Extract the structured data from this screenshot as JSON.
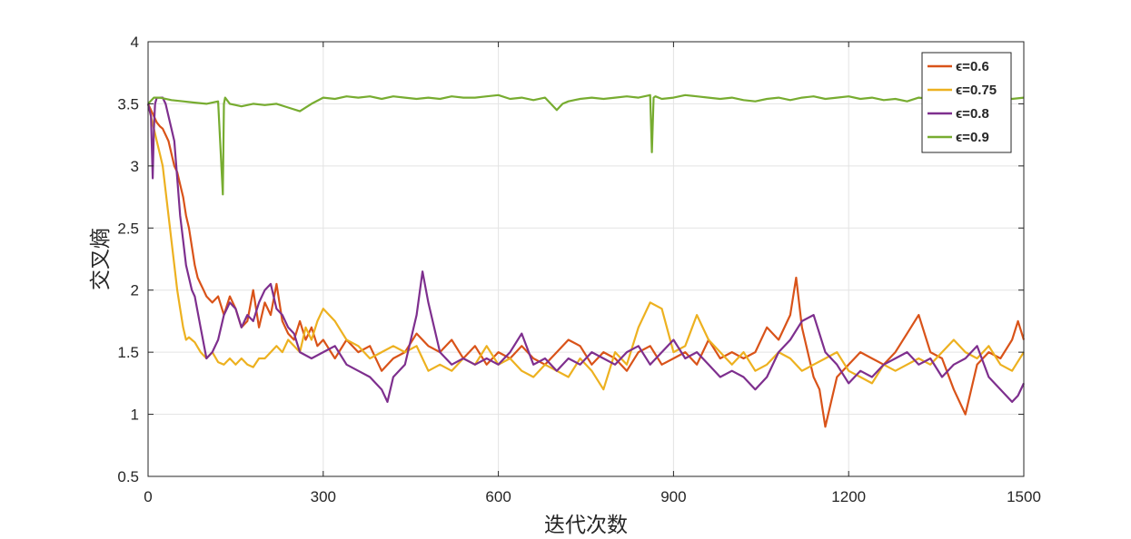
{
  "chart_data": {
    "type": "line",
    "title": "",
    "xlabel": "迭代次数",
    "ylabel": "交叉熵",
    "xlim": [
      0,
      1500
    ],
    "ylim": [
      0.5,
      4
    ],
    "xticks": [
      0,
      300,
      600,
      900,
      1200,
      1500
    ],
    "yticks": [
      0.5,
      1,
      1.5,
      2,
      2.5,
      3,
      3.5,
      4
    ],
    "grid": true,
    "legend_position": "top-right",
    "series": [
      {
        "name": "ϵ=0.6",
        "color": "#D95319",
        "x": [
          0,
          5,
          10,
          15,
          20,
          25,
          30,
          35,
          40,
          45,
          50,
          55,
          60,
          65,
          70,
          75,
          80,
          85,
          90,
          95,
          100,
          110,
          120,
          130,
          140,
          150,
          160,
          170,
          180,
          190,
          200,
          210,
          220,
          230,
          240,
          250,
          260,
          270,
          280,
          290,
          300,
          320,
          340,
          360,
          380,
          400,
          420,
          440,
          460,
          480,
          500,
          520,
          540,
          560,
          580,
          600,
          620,
          640,
          660,
          680,
          700,
          720,
          740,
          760,
          780,
          800,
          820,
          840,
          860,
          880,
          900,
          920,
          940,
          960,
          980,
          1000,
          1020,
          1040,
          1060,
          1080,
          1100,
          1110,
          1120,
          1130,
          1140,
          1150,
          1160,
          1170,
          1180,
          1200,
          1220,
          1240,
          1260,
          1280,
          1300,
          1320,
          1340,
          1360,
          1380,
          1400,
          1420,
          1440,
          1460,
          1480,
          1490,
          1500
        ],
        "y": [
          3.5,
          3.45,
          3.4,
          3.35,
          3.32,
          3.3,
          3.25,
          3.2,
          3.1,
          3.0,
          2.95,
          2.85,
          2.75,
          2.6,
          2.5,
          2.35,
          2.2,
          2.1,
          2.05,
          2.0,
          1.95,
          1.9,
          1.95,
          1.8,
          1.95,
          1.85,
          1.7,
          1.75,
          2.0,
          1.7,
          1.9,
          1.8,
          2.05,
          1.75,
          1.65,
          1.6,
          1.75,
          1.6,
          1.7,
          1.55,
          1.6,
          1.45,
          1.6,
          1.5,
          1.55,
          1.35,
          1.45,
          1.5,
          1.65,
          1.55,
          1.5,
          1.6,
          1.45,
          1.55,
          1.4,
          1.5,
          1.45,
          1.55,
          1.45,
          1.4,
          1.5,
          1.6,
          1.55,
          1.4,
          1.5,
          1.45,
          1.35,
          1.5,
          1.55,
          1.4,
          1.45,
          1.5,
          1.4,
          1.6,
          1.45,
          1.5,
          1.45,
          1.5,
          1.7,
          1.6,
          1.8,
          2.1,
          1.7,
          1.5,
          1.3,
          1.2,
          0.9,
          1.1,
          1.3,
          1.4,
          1.5,
          1.45,
          1.4,
          1.5,
          1.65,
          1.8,
          1.5,
          1.45,
          1.2,
          1.0,
          1.4,
          1.5,
          1.45,
          1.6,
          1.75,
          1.6
        ]
      },
      {
        "name": "ϵ=0.75",
        "color": "#EDB120",
        "x": [
          0,
          5,
          10,
          15,
          20,
          25,
          30,
          35,
          40,
          45,
          50,
          55,
          60,
          65,
          70,
          75,
          80,
          90,
          100,
          110,
          120,
          130,
          140,
          150,
          160,
          170,
          180,
          190,
          200,
          210,
          220,
          230,
          240,
          250,
          260,
          270,
          280,
          290,
          300,
          320,
          340,
          360,
          380,
          400,
          420,
          440,
          460,
          480,
          500,
          520,
          540,
          560,
          580,
          600,
          620,
          640,
          660,
          680,
          700,
          720,
          740,
          760,
          780,
          800,
          820,
          840,
          860,
          880,
          900,
          920,
          940,
          960,
          980,
          1000,
          1020,
          1040,
          1060,
          1080,
          1100,
          1120,
          1140,
          1160,
          1180,
          1200,
          1220,
          1240,
          1260,
          1280,
          1300,
          1320,
          1340,
          1360,
          1380,
          1400,
          1420,
          1440,
          1460,
          1480,
          1500
        ],
        "y": [
          3.5,
          3.4,
          3.3,
          3.2,
          3.1,
          3.0,
          2.8,
          2.6,
          2.4,
          2.2,
          2.0,
          1.85,
          1.7,
          1.6,
          1.62,
          1.6,
          1.58,
          1.5,
          1.45,
          1.5,
          1.42,
          1.4,
          1.45,
          1.4,
          1.45,
          1.4,
          1.38,
          1.45,
          1.45,
          1.5,
          1.55,
          1.5,
          1.6,
          1.55,
          1.5,
          1.7,
          1.6,
          1.75,
          1.85,
          1.75,
          1.6,
          1.55,
          1.45,
          1.5,
          1.55,
          1.5,
          1.55,
          1.35,
          1.4,
          1.35,
          1.45,
          1.4,
          1.55,
          1.4,
          1.45,
          1.35,
          1.3,
          1.4,
          1.35,
          1.3,
          1.45,
          1.35,
          1.2,
          1.5,
          1.4,
          1.7,
          1.9,
          1.85,
          1.5,
          1.55,
          1.8,
          1.6,
          1.5,
          1.4,
          1.5,
          1.35,
          1.4,
          1.5,
          1.45,
          1.35,
          1.4,
          1.45,
          1.5,
          1.35,
          1.3,
          1.25,
          1.4,
          1.35,
          1.4,
          1.45,
          1.4,
          1.5,
          1.6,
          1.5,
          1.45,
          1.55,
          1.4,
          1.35,
          1.5
        ]
      },
      {
        "name": "ϵ=0.8",
        "color": "#7E2F8E",
        "x": [
          0,
          5,
          8,
          10,
          12,
          15,
          20,
          25,
          30,
          35,
          40,
          45,
          50,
          55,
          60,
          65,
          70,
          75,
          80,
          90,
          100,
          110,
          120,
          130,
          140,
          150,
          160,
          170,
          180,
          190,
          200,
          210,
          220,
          230,
          240,
          250,
          260,
          280,
          300,
          320,
          340,
          360,
          380,
          400,
          410,
          420,
          440,
          460,
          470,
          480,
          500,
          520,
          540,
          560,
          580,
          600,
          620,
          640,
          660,
          680,
          700,
          720,
          740,
          760,
          780,
          800,
          820,
          840,
          860,
          880,
          900,
          920,
          940,
          960,
          980,
          1000,
          1020,
          1040,
          1060,
          1080,
          1100,
          1120,
          1140,
          1160,
          1180,
          1200,
          1220,
          1240,
          1260,
          1280,
          1300,
          1320,
          1340,
          1360,
          1380,
          1400,
          1420,
          1440,
          1460,
          1480,
          1490,
          1500
        ],
        "y": [
          3.5,
          3.4,
          2.9,
          3.3,
          3.5,
          3.55,
          3.55,
          3.55,
          3.5,
          3.4,
          3.3,
          3.2,
          2.9,
          2.6,
          2.4,
          2.2,
          2.1,
          2.0,
          1.95,
          1.7,
          1.45,
          1.5,
          1.6,
          1.8,
          1.9,
          1.85,
          1.7,
          1.8,
          1.75,
          1.9,
          2.0,
          2.05,
          1.85,
          1.8,
          1.7,
          1.65,
          1.5,
          1.45,
          1.5,
          1.55,
          1.4,
          1.35,
          1.3,
          1.2,
          1.1,
          1.3,
          1.4,
          1.8,
          2.15,
          1.9,
          1.5,
          1.4,
          1.45,
          1.4,
          1.45,
          1.4,
          1.5,
          1.65,
          1.4,
          1.45,
          1.35,
          1.45,
          1.4,
          1.5,
          1.45,
          1.4,
          1.5,
          1.55,
          1.4,
          1.5,
          1.6,
          1.45,
          1.5,
          1.4,
          1.3,
          1.35,
          1.3,
          1.2,
          1.3,
          1.5,
          1.6,
          1.75,
          1.8,
          1.5,
          1.4,
          1.25,
          1.35,
          1.3,
          1.4,
          1.45,
          1.5,
          1.4,
          1.45,
          1.3,
          1.4,
          1.45,
          1.55,
          1.3,
          1.2,
          1.1,
          1.15,
          1.25
        ]
      },
      {
        "name": "ϵ=0.9",
        "color": "#77AC30",
        "x": [
          0,
          10,
          20,
          40,
          60,
          80,
          100,
          120,
          128,
          130,
          132,
          140,
          160,
          180,
          200,
          220,
          240,
          260,
          280,
          300,
          320,
          340,
          360,
          380,
          400,
          420,
          440,
          460,
          480,
          500,
          520,
          540,
          560,
          580,
          600,
          620,
          640,
          660,
          680,
          700,
          710,
          720,
          740,
          760,
          780,
          800,
          820,
          840,
          860,
          863,
          866,
          869,
          880,
          900,
          920,
          940,
          960,
          980,
          1000,
          1020,
          1040,
          1060,
          1080,
          1100,
          1120,
          1140,
          1160,
          1180,
          1200,
          1220,
          1240,
          1260,
          1280,
          1300,
          1320,
          1340,
          1360,
          1380,
          1400,
          1420,
          1440,
          1460,
          1480,
          1500
        ],
        "y": [
          3.5,
          3.55,
          3.55,
          3.53,
          3.52,
          3.51,
          3.5,
          3.52,
          2.77,
          3.5,
          3.55,
          3.5,
          3.48,
          3.5,
          3.49,
          3.5,
          3.47,
          3.44,
          3.5,
          3.55,
          3.54,
          3.56,
          3.55,
          3.56,
          3.54,
          3.56,
          3.55,
          3.54,
          3.55,
          3.54,
          3.56,
          3.55,
          3.55,
          3.56,
          3.57,
          3.54,
          3.55,
          3.53,
          3.55,
          3.45,
          3.5,
          3.52,
          3.54,
          3.55,
          3.54,
          3.55,
          3.56,
          3.55,
          3.57,
          3.11,
          3.55,
          3.56,
          3.54,
          3.55,
          3.57,
          3.56,
          3.55,
          3.54,
          3.55,
          3.53,
          3.52,
          3.54,
          3.55,
          3.53,
          3.55,
          3.56,
          3.54,
          3.55,
          3.56,
          3.54,
          3.55,
          3.53,
          3.54,
          3.52,
          3.55,
          3.54,
          3.55,
          3.56,
          3.53,
          3.54,
          3.55,
          3.56,
          3.54,
          3.55
        ]
      }
    ]
  }
}
